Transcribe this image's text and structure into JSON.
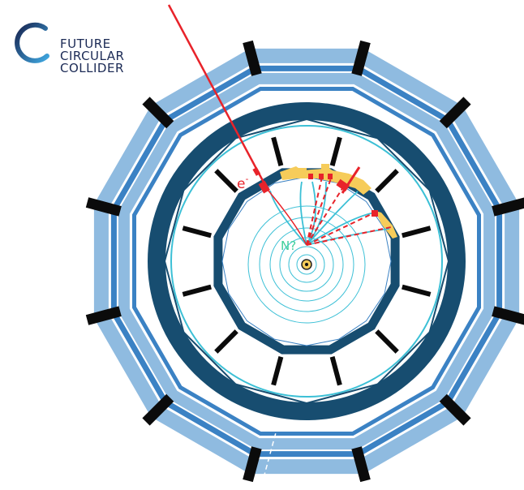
{
  "logo": {
    "name": "circular-logo-icon",
    "lines": [
      "FUTURE",
      "CIRCULAR",
      "COLLIDER"
    ],
    "color": "#1b2a55"
  },
  "labels": {
    "electron": "e",
    "electron_sup": "-",
    "particle": "N?"
  },
  "colors": {
    "outer_light": "#8fbbe0",
    "outer_mid": "#3b82c4",
    "detector_dark": "#174d70",
    "track_cyan": "#3cc0d6",
    "track_red": "#e8232a",
    "deposit_yellow": "#f6cc5a",
    "bars_black": "#0b0b0b",
    "particle_green": "#3fcf9a"
  }
}
